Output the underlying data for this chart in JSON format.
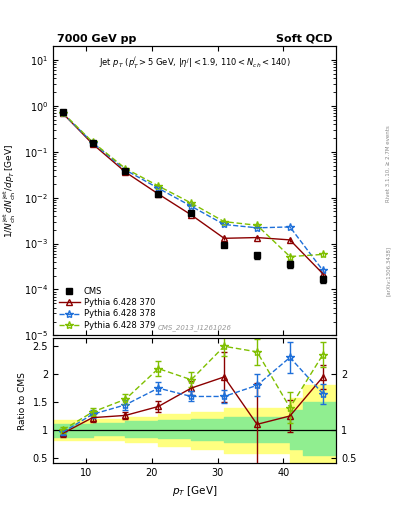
{
  "title_left": "7000 GeV pp",
  "title_right": "Soft QCD",
  "watermark": "CMS_2013_I1261026",
  "right_label": "Rivet 3.1.10, ≥ 2.7M events",
  "arxiv_label": "[arXiv:1306.3438]",
  "ylabel_ratio": "Ratio to CMS",
  "xlabel": "p$_T$ [GeV]",
  "xlim": [
    5,
    48
  ],
  "ylim_main": [
    1e-05,
    20
  ],
  "ylim_ratio": [
    0.4,
    2.65
  ],
  "cms_x": [
    6.5,
    11,
    16,
    21,
    26,
    31,
    36,
    41,
    46
  ],
  "cms_y": [
    0.72,
    0.155,
    0.038,
    0.012,
    0.0046,
    0.00095,
    0.00055,
    0.00035,
    0.00017
  ],
  "cms_yerr": [
    0.06,
    0.01,
    0.003,
    0.001,
    0.0004,
    0.00012,
    8e-05,
    6e-05,
    3e-05
  ],
  "p370_x": [
    6.5,
    11,
    16,
    21,
    26,
    31,
    36,
    41,
    46
  ],
  "p370_y": [
    0.68,
    0.148,
    0.036,
    0.012,
    0.0042,
    0.0013,
    0.00135,
    0.0012,
    0.00022
  ],
  "p370_yerr": [
    0.01,
    0.003,
    0.001,
    0.0003,
    0.0001,
    0.0001,
    0.00012,
    0.0001,
    3e-05
  ],
  "p378_x": [
    6.5,
    11,
    16,
    21,
    26,
    31,
    36,
    41,
    46
  ],
  "p378_y": [
    0.68,
    0.158,
    0.04,
    0.016,
    0.0065,
    0.0026,
    0.0022,
    0.0023,
    0.00026
  ],
  "p378_yerr": [
    0.01,
    0.003,
    0.001,
    0.0004,
    0.0001,
    0.0001,
    0.00015,
    0.00012,
    3e-05
  ],
  "p379_x": [
    6.5,
    11,
    16,
    21,
    26,
    31,
    36,
    41,
    46
  ],
  "p379_y": [
    0.7,
    0.163,
    0.043,
    0.018,
    0.0076,
    0.003,
    0.0025,
    0.00052,
    0.00058
  ],
  "p379_yerr": [
    0.01,
    0.003,
    0.001,
    0.0005,
    0.0002,
    0.0001,
    0.00018,
    8e-05,
    8e-05
  ],
  "ratio_p370": [
    0.94,
    1.22,
    1.26,
    1.42,
    1.75,
    1.95,
    1.1,
    1.25,
    1.95
  ],
  "ratio_p378": [
    0.96,
    1.28,
    1.45,
    1.75,
    1.6,
    1.6,
    1.8,
    2.3,
    1.65
  ],
  "ratio_p379": [
    1.0,
    1.32,
    1.55,
    2.1,
    1.9,
    2.5,
    2.4,
    1.4,
    2.35
  ],
  "ratio_p370_err": [
    0.06,
    0.07,
    0.07,
    0.09,
    0.12,
    0.45,
    0.75,
    0.28,
    0.22
  ],
  "ratio_p378_err": [
    0.05,
    0.07,
    0.09,
    0.11,
    0.09,
    0.11,
    0.2,
    0.28,
    0.18
  ],
  "ratio_p379_err": [
    0.05,
    0.07,
    0.09,
    0.13,
    0.13,
    0.17,
    0.23,
    0.28,
    0.22
  ],
  "band_yellow_x": [
    5,
    7,
    11,
    16,
    21,
    26,
    31,
    41,
    43,
    48
  ],
  "band_yellow_lo": [
    0.82,
    0.82,
    0.82,
    0.78,
    0.72,
    0.65,
    0.58,
    0.38,
    0.28,
    0.28
  ],
  "band_yellow_hi": [
    1.18,
    1.18,
    1.2,
    1.24,
    1.28,
    1.33,
    1.4,
    1.58,
    1.8,
    1.8
  ],
  "band_green_x": [
    5,
    7,
    11,
    16,
    21,
    26,
    31,
    41,
    43,
    48
  ],
  "band_green_lo": [
    0.88,
    0.88,
    0.9,
    0.88,
    0.85,
    0.82,
    0.78,
    0.65,
    0.55,
    0.55
  ],
  "band_green_hi": [
    1.1,
    1.1,
    1.13,
    1.16,
    1.18,
    1.2,
    1.23,
    1.35,
    1.5,
    1.5
  ],
  "color_370": "#8B0000",
  "color_378": "#1E6FD9",
  "color_379": "#7FBF00",
  "color_cms": "#000000",
  "color_green_band": "#90EE90",
  "color_yellow_band": "#FFFF80"
}
